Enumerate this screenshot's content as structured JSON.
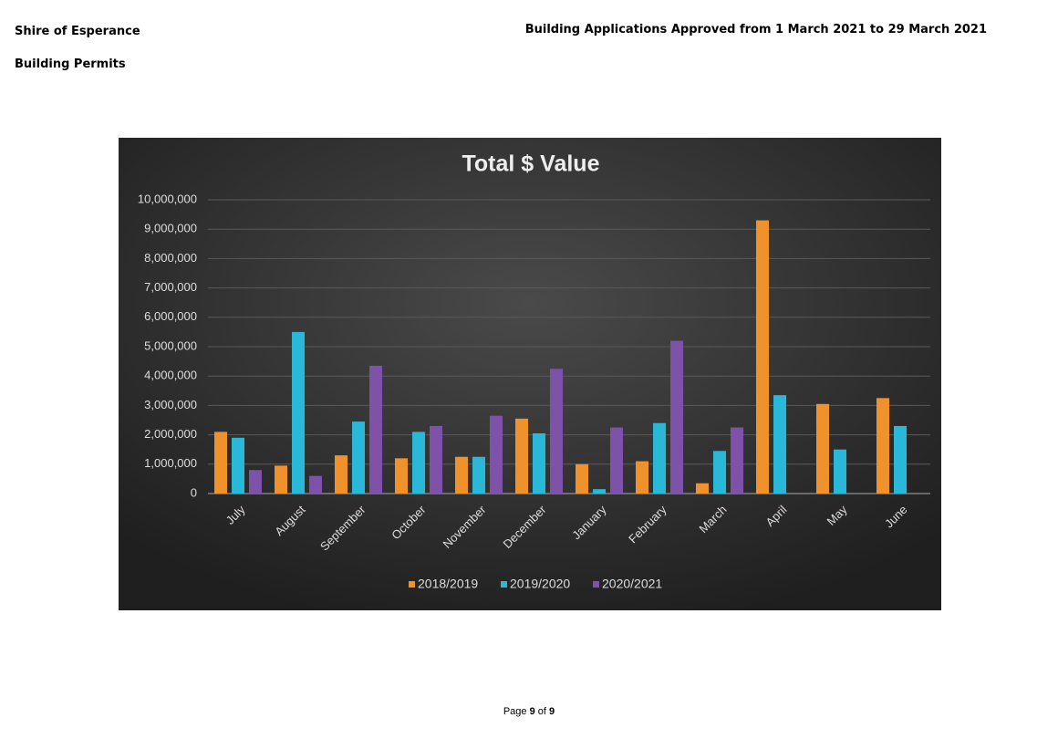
{
  "header": {
    "organisation": "Shire of Esperance",
    "section": "Building Permits",
    "report_title": "Building Applications Approved from 1 March 2021 to 29 March 2021"
  },
  "chart_data": {
    "type": "bar",
    "title": "Total $ Value",
    "categories": [
      "July",
      "August",
      "September",
      "October",
      "November",
      "December",
      "January",
      "February",
      "March",
      "April",
      "May",
      "June"
    ],
    "series": [
      {
        "name": "2018/2019",
        "color": "#f0922b",
        "values": [
          2100000,
          950000,
          1300000,
          1200000,
          1250000,
          2550000,
          1000000,
          1100000,
          350000,
          9300000,
          3050000,
          3250000
        ]
      },
      {
        "name": "2019/2020",
        "color": "#2ab8d8",
        "values": [
          1900000,
          5500000,
          2450000,
          2100000,
          1250000,
          2050000,
          150000,
          2400000,
          1450000,
          3350000,
          1500000,
          2300000
        ]
      },
      {
        "name": "2020/2021",
        "color": "#7e52a8",
        "values": [
          800000,
          600000,
          4350000,
          2300000,
          2650000,
          4250000,
          2250000,
          5200000,
          2250000,
          null,
          null,
          null
        ]
      }
    ],
    "ylim": [
      0,
      10000000
    ],
    "yticks": [
      0,
      {
        "value": 1000000,
        "label": "1,000,000"
      },
      {
        "value": 2000000,
        "label": "2,000,000"
      },
      {
        "value": 3000000,
        "label": "3,000,000"
      },
      {
        "value": 4000000,
        "label": "4,000,000"
      },
      {
        "value": 5000000,
        "label": "5,000,000"
      },
      {
        "value": 6000000,
        "label": "6,000,000"
      },
      {
        "value": 7000000,
        "label": "7,000,000"
      },
      {
        "value": 8000000,
        "label": "8,000,000"
      },
      {
        "value": 9000000,
        "label": "9,000,000"
      },
      {
        "value": 10000000,
        "label": "10,000,000"
      }
    ],
    "grid": true,
    "legend": "bottom"
  },
  "footer": {
    "page_word": "Page",
    "page": 9,
    "of_word": "of",
    "total": 9
  }
}
